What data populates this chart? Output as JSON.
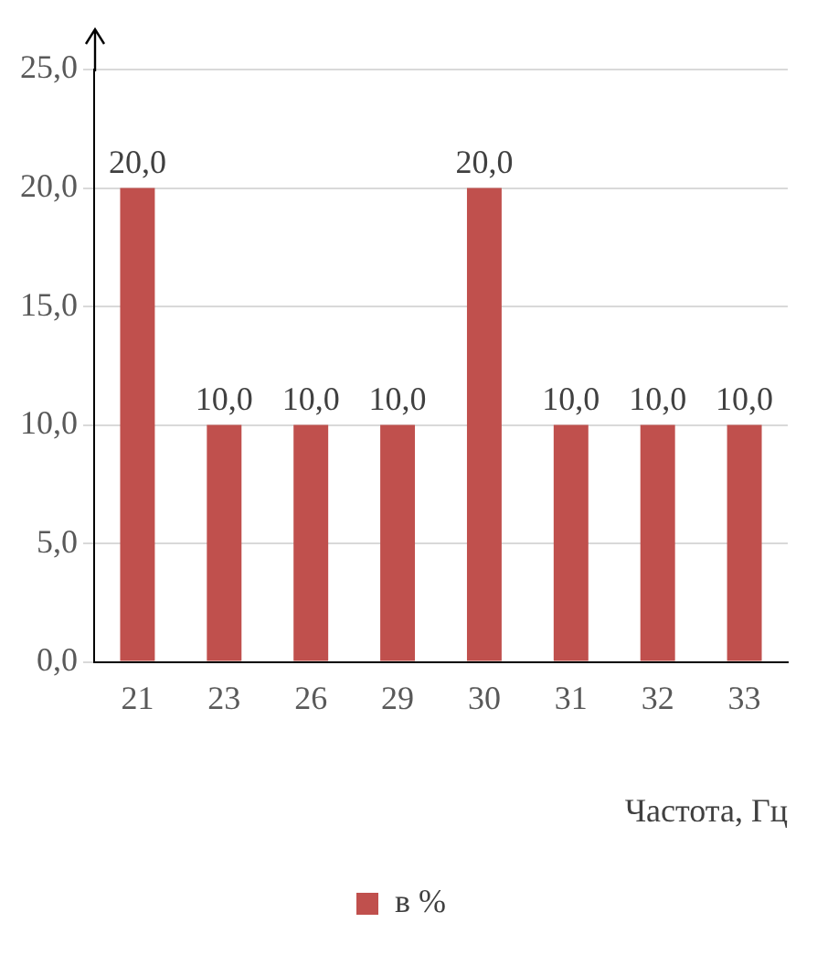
{
  "chart_data": {
    "type": "bar",
    "xlabel": "Частота, Гц",
    "categories": [
      "21",
      "23",
      "26",
      "29",
      "30",
      "31",
      "32",
      "33"
    ],
    "series": [
      {
        "name": "в %",
        "color": "#c0504d",
        "values": [
          20,
          10,
          10,
          10,
          20,
          10,
          10,
          10
        ],
        "value_labels": [
          "20,0",
          "10,0",
          "10,0",
          "10,0",
          "20,0",
          "10,0",
          "10,0",
          "10,0"
        ]
      }
    ],
    "ylim": [
      0,
      25
    ],
    "yticks": [
      {
        "value": 0,
        "label": "0,0"
      },
      {
        "value": 5,
        "label": "5,0"
      },
      {
        "value": 10,
        "label": "10,0"
      },
      {
        "value": 15,
        "label": "15,0"
      },
      {
        "value": 20,
        "label": "20,0"
      },
      {
        "value": 25,
        "label": "25,0"
      }
    ],
    "grid": "y",
    "legend": "bottom"
  }
}
